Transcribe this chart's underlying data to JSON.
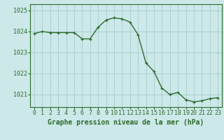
{
  "x": [
    0,
    1,
    2,
    3,
    4,
    5,
    6,
    7,
    8,
    9,
    10,
    11,
    12,
    13,
    14,
    15,
    16,
    17,
    18,
    19,
    20,
    21,
    22,
    23
  ],
  "y": [
    1023.9,
    1024.0,
    1023.95,
    1023.95,
    1023.95,
    1023.95,
    1023.65,
    1023.65,
    1024.2,
    1024.55,
    1024.65,
    1024.6,
    1024.45,
    1023.85,
    1022.5,
    1022.1,
    1021.3,
    1021.0,
    1021.1,
    1020.75,
    1020.65,
    1020.7,
    1020.8,
    1020.85
  ],
  "line_color": "#2d6a2d",
  "marker": "+",
  "marker_color": "#2d6a2d",
  "bg_color": "#cce8e8",
  "grid_color": "#9ec8c8",
  "xlabel": "Graphe pression niveau de la mer (hPa)",
  "xlabel_color": "#2d6a2d",
  "tick_color": "#2d6a2d",
  "ylim": [
    1020.4,
    1025.3
  ],
  "yticks": [
    1021,
    1022,
    1023,
    1024,
    1025
  ],
  "xticks": [
    0,
    1,
    2,
    3,
    4,
    5,
    6,
    7,
    8,
    9,
    10,
    11,
    12,
    13,
    14,
    15,
    16,
    17,
    18,
    19,
    20,
    21,
    22,
    23
  ],
  "xlabel_fontsize": 7,
  "tick_fontsize": 6,
  "linewidth": 1.0,
  "markersize": 3.5
}
